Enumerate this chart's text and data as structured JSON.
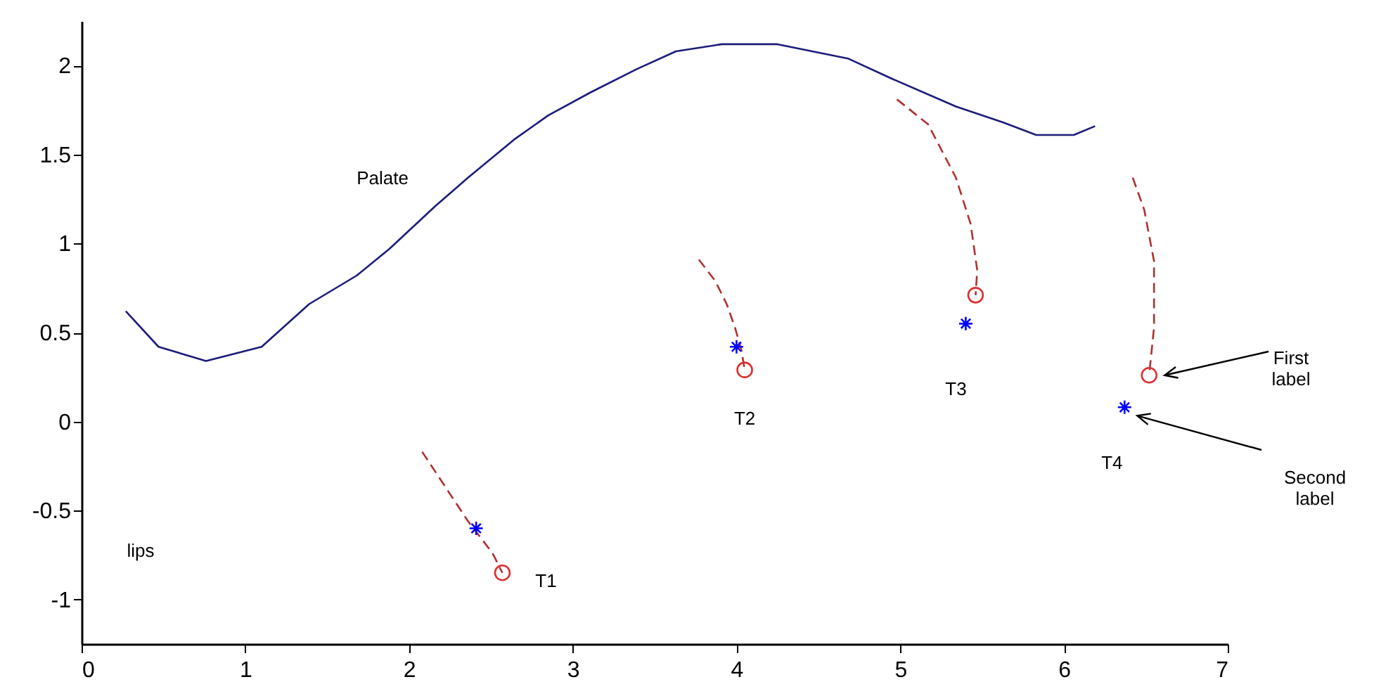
{
  "chart_data": {
    "type": "line",
    "xlim": [
      0,
      7
    ],
    "ylim": [
      -1.25,
      2.25
    ],
    "xticks": [
      0,
      1,
      2,
      3,
      4,
      5,
      6,
      7
    ],
    "yticks": [
      -1,
      -0.5,
      0,
      0.5,
      1,
      1.5,
      2
    ],
    "grid": false,
    "series": [
      {
        "type": "line",
        "color": "#1c1c7a",
        "x": [
          0.27,
          0.47,
          0.76,
          1.1,
          1.39,
          1.68,
          1.88,
          2.16,
          2.36,
          2.65,
          2.85,
          3.11,
          3.39,
          3.63,
          3.91,
          4.25,
          4.68,
          4.94,
          5.34,
          5.63,
          5.83,
          6.06,
          6.19
        ],
        "values": [
          0.62,
          0.42,
          0.34,
          0.42,
          0.66,
          0.82,
          0.97,
          1.21,
          1.37,
          1.59,
          1.72,
          1.85,
          1.98,
          2.08,
          2.12,
          2.12,
          2.04,
          1.93,
          1.77,
          1.68,
          1.61,
          1.61,
          1.66
        ]
      },
      {
        "type": "line",
        "line_style": "dashed",
        "color": "#b03030",
        "x": [
          2.08,
          2.36,
          2.51,
          2.57
        ],
        "values": [
          -0.17,
          -0.56,
          -0.74,
          -0.85
        ]
      },
      {
        "type": "line",
        "line_style": "dashed",
        "color": "#b03030",
        "x": [
          3.77,
          3.87,
          3.94,
          3.99,
          4.03,
          4.05
        ],
        "values": [
          0.91,
          0.79,
          0.66,
          0.53,
          0.4,
          0.29
        ]
      },
      {
        "type": "line",
        "line_style": "dashed",
        "color": "#b03030",
        "x": [
          4.98,
          5.17,
          5.34,
          5.43,
          5.47,
          5.46
        ],
        "values": [
          1.81,
          1.67,
          1.37,
          1.11,
          0.85,
          0.71
        ]
      },
      {
        "type": "line",
        "line_style": "dashed",
        "color": "#b03030",
        "x": [
          6.42,
          6.49,
          6.55,
          6.55,
          6.52
        ],
        "values": [
          1.37,
          1.19,
          0.9,
          0.53,
          0.26
        ]
      },
      {
        "type": "scatter",
        "marker": "cross",
        "color": "#0000ff",
        "x": [
          2.41,
          4.0,
          5.4,
          6.37
        ],
        "values": [
          -0.6,
          0.42,
          0.55,
          0.08
        ]
      },
      {
        "type": "scatter",
        "marker": "circle",
        "color": "#e03030",
        "x": [
          2.57,
          4.05,
          5.46,
          6.52
        ],
        "values": [
          -0.85,
          0.29,
          0.71,
          0.26
        ]
      }
    ],
    "annotations": [
      "Palate",
      "lips",
      {
        "text": "T1",
        "x": 2.57,
        "y": -0.85
      },
      {
        "text": "T2",
        "x": 4.05,
        "y": 0.29
      },
      {
        "text": "T3",
        "x": 5.4,
        "y": 0.55
      },
      {
        "text": "T4",
        "x": 6.37,
        "y": 0.08
      },
      "First label",
      "Second label"
    ]
  }
}
